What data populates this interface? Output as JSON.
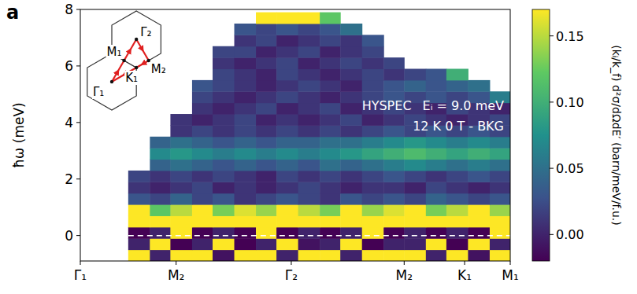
{
  "chart_data": {
    "type": "heatmap",
    "panel_label": "a",
    "y_label": "ħω (meV)",
    "annotations": [
      "HYSPEC",
      "Eᵢ = 9.0 meV",
      "12 K 0 T - BKG"
    ],
    "inset_labels": [
      "Γ₁",
      "M₁",
      "Γ₂",
      "M₂",
      "K₁"
    ],
    "xlim": [
      0,
      3.77
    ],
    "ylim": [
      -0.9,
      8
    ],
    "xticks": [
      {
        "value": 0,
        "label": "Γ₁"
      },
      {
        "value": 0.84,
        "label": "M₂"
      },
      {
        "value": 1.85,
        "label": "Γ₂"
      },
      {
        "value": 2.84,
        "label": "M₂"
      },
      {
        "value": 3.37,
        "label": "K₁"
      },
      {
        "value": 3.77,
        "label": "M₁"
      }
    ],
    "yticks": [
      0,
      2,
      4,
      6,
      8
    ],
    "reference_lines": [
      0
    ],
    "x_edges": [
      0.42,
      0.61,
      0.79,
      0.98,
      1.16,
      1.35,
      1.54,
      1.72,
      1.91,
      2.1,
      2.28,
      2.47,
      2.66,
      2.84,
      3.03,
      3.21,
      3.4,
      3.59,
      3.77
    ],
    "y_edges": [
      -0.9,
      -0.5,
      -0.1,
      0.3,
      0.7,
      1.1,
      1.5,
      1.9,
      2.3,
      2.7,
      3.1,
      3.5,
      3.9,
      4.3,
      4.7,
      5.1,
      5.5,
      5.9,
      6.3,
      6.7,
      7.1,
      7.5,
      7.9
    ],
    "z": [
      [
        0.17,
        0.0,
        0.17,
        0.17,
        -0.01,
        0.17,
        0.17,
        0.0,
        0.17,
        0.17,
        0.0,
        0.17,
        0.17,
        0.17,
        0.0,
        0.17,
        -0.01,
        0.17
      ],
      [
        0.0,
        0.17,
        -0.02,
        0.0,
        0.17,
        -0.02,
        0.0,
        0.17,
        -0.01,
        0.0,
        0.17,
        -0.02,
        0.0,
        0.0,
        0.17,
        -0.02,
        0.17,
        0.0
      ],
      [
        -0.02,
        0.0,
        0.17,
        -0.02,
        0.0,
        -0.02,
        0.17,
        -0.02,
        0.0,
        -0.02,
        0.0,
        0.17,
        -0.02,
        0.0,
        -0.02,
        0.0,
        -0.02,
        0.17
      ],
      [
        0.17,
        0.17,
        0.17,
        0.17,
        0.17,
        0.17,
        0.17,
        0.17,
        0.17,
        0.17,
        0.17,
        0.17,
        0.17,
        0.17,
        0.17,
        0.17,
        0.17,
        0.17
      ],
      [
        0.17,
        0.12,
        0.15,
        0.17,
        0.13,
        0.16,
        0.14,
        0.17,
        0.15,
        0.13,
        0.17,
        0.14,
        0.16,
        0.17,
        0.13,
        0.15,
        0.17,
        0.14
      ],
      [
        0.03,
        0.02,
        0.04,
        0.02,
        0.03,
        0.01,
        0.02,
        0.03,
        0.02,
        0.01,
        0.03,
        0.02,
        0.03,
        0.02,
        0.04,
        0.03,
        0.02,
        0.03
      ],
      [
        0.01,
        0.0,
        0.01,
        0.02,
        0.0,
        0.01,
        0.0,
        0.01,
        0.02,
        0.01,
        0.0,
        0.01,
        0.01,
        0.0,
        0.02,
        0.01,
        0.0,
        0.01
      ],
      [
        0.02,
        0.01,
        0.02,
        0.01,
        0.02,
        0.01,
        0.0,
        0.02,
        0.01,
        0.02,
        0.01,
        0.02,
        0.03,
        0.02,
        0.01,
        0.02,
        0.03,
        0.02
      ],
      [
        null,
        0.04,
        0.05,
        0.04,
        0.03,
        0.04,
        0.03,
        0.04,
        0.03,
        0.05,
        0.04,
        0.05,
        0.06,
        0.07,
        0.06,
        0.05,
        0.06,
        0.05
      ],
      [
        null,
        0.07,
        0.08,
        0.07,
        0.06,
        0.07,
        0.06,
        0.07,
        0.06,
        0.07,
        0.08,
        0.09,
        0.1,
        0.11,
        0.1,
        0.09,
        0.1,
        0.09
      ],
      [
        null,
        0.04,
        0.05,
        0.04,
        0.03,
        0.04,
        0.03,
        0.04,
        0.04,
        0.05,
        0.05,
        0.06,
        0.07,
        0.08,
        0.07,
        0.06,
        0.07,
        0.06
      ],
      [
        null,
        null,
        0.01,
        0.02,
        0.01,
        0.02,
        0.01,
        0.02,
        0.01,
        0.02,
        0.01,
        0.02,
        0.03,
        0.02,
        0.03,
        0.02,
        0.03,
        0.02
      ],
      [
        null,
        null,
        0.01,
        0.0,
        0.01,
        0.02,
        0.0,
        0.01,
        0.0,
        0.01,
        0.02,
        0.0,
        0.01,
        0.02,
        0.01,
        0.0,
        0.01,
        0.02
      ],
      [
        null,
        null,
        null,
        0.01,
        0.0,
        0.01,
        0.02,
        0.0,
        0.01,
        0.02,
        0.0,
        0.01,
        0.02,
        0.01,
        0.0,
        0.02,
        0.01,
        0.0
      ],
      [
        null,
        null,
        null,
        0.02,
        0.01,
        0.0,
        0.01,
        0.02,
        0.01,
        0.0,
        0.01,
        0.02,
        0.03,
        0.02,
        0.03,
        0.02,
        0.03,
        0.06
      ],
      [
        null,
        null,
        null,
        0.03,
        0.02,
        0.01,
        0.0,
        0.01,
        0.02,
        0.01,
        0.0,
        0.02,
        0.03,
        0.04,
        0.03,
        0.04,
        0.05,
        null
      ],
      [
        null,
        null,
        null,
        null,
        0.02,
        0.01,
        0.0,
        0.02,
        0.01,
        0.0,
        0.01,
        0.02,
        0.01,
        0.02,
        0.03,
        0.1,
        null,
        null
      ],
      [
        null,
        null,
        null,
        null,
        0.01,
        0.0,
        0.01,
        0.02,
        0.0,
        0.01,
        0.02,
        0.01,
        0.02,
        null,
        null,
        null,
        null,
        null
      ],
      [
        null,
        null,
        null,
        null,
        0.02,
        0.02,
        0.0,
        0.01,
        0.02,
        0.0,
        0.01,
        0.02,
        null,
        null,
        null,
        null,
        null,
        null
      ],
      [
        null,
        null,
        null,
        null,
        null,
        0.01,
        0.02,
        0.0,
        0.01,
        0.02,
        0.01,
        0.03,
        null,
        null,
        null,
        null,
        null,
        null
      ],
      [
        null,
        null,
        null,
        null,
        null,
        0.03,
        0.02,
        0.03,
        0.02,
        0.03,
        0.05,
        null,
        null,
        null,
        null,
        null,
        null,
        null
      ],
      [
        null,
        null,
        null,
        null,
        null,
        null,
        0.17,
        0.17,
        0.17,
        0.12,
        null,
        null,
        null,
        null,
        null,
        null,
        null,
        null
      ]
    ],
    "colorbar": {
      "range": [
        -0.02,
        0.17
      ],
      "ticks": [
        {
          "value": 0,
          "label": "0.00"
        },
        {
          "value": 0.05,
          "label": "0.05"
        },
        {
          "value": 0.1,
          "label": "0.10"
        },
        {
          "value": 0.15,
          "label": "0.15"
        }
      ],
      "label": "(kᵢ/k_f) d²σ/dΩdE′ (barn/meV/f.u.)"
    }
  }
}
